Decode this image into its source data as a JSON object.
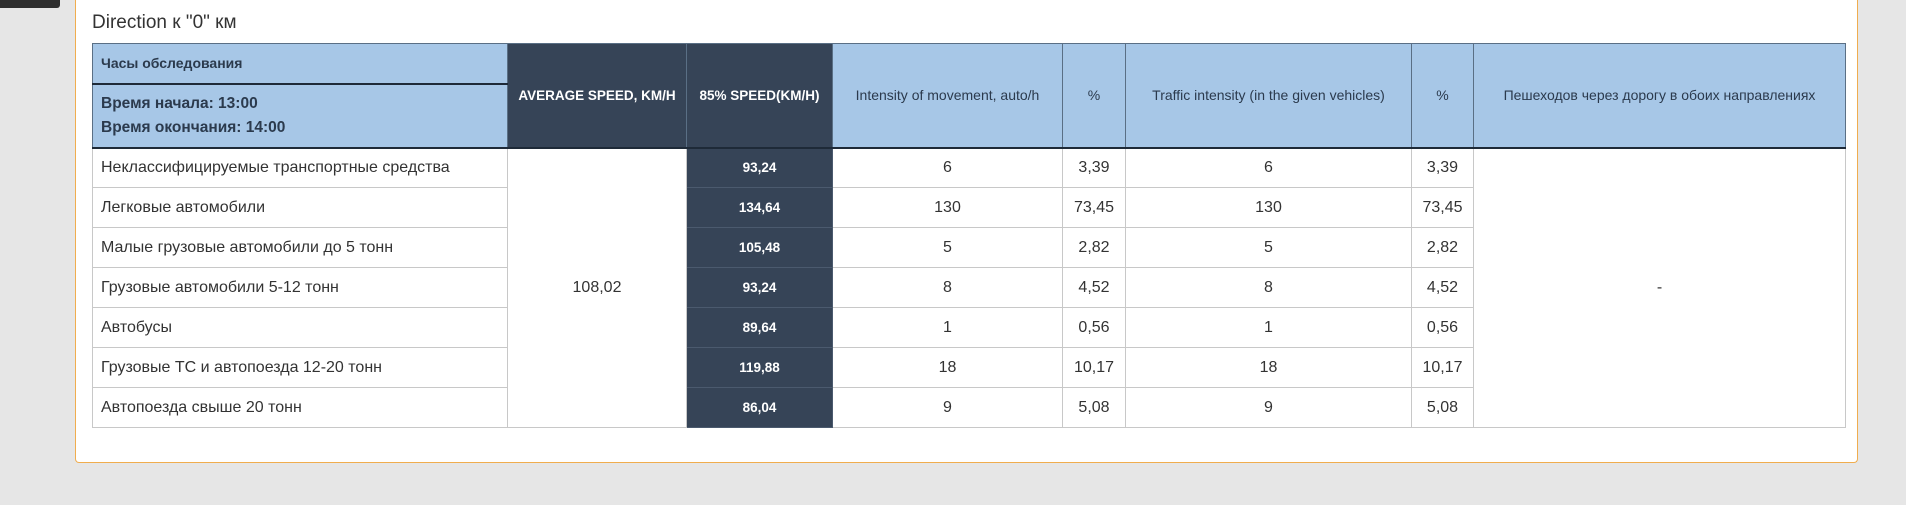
{
  "panel": {
    "title": "Direction к \"0\" км"
  },
  "table": {
    "headers": {
      "hours": "Часы обследования",
      "start_time": "Время начала: 13:00",
      "end_time": "Время окончания: 14:00",
      "avg_speed": "AVERAGE SPEED, KM/H",
      "speed85": "85% SPEED(KM/H)",
      "intensity": "Intensity of movement, auto/h",
      "pct1": "%",
      "traffic": "Traffic intensity (in the given vehicles)",
      "pct2": "%",
      "pedestrians": "Пешеходов через дорогу в обоих направлениях"
    },
    "avg_speed_value": "108,02",
    "pedestrians_value": "-",
    "rows": [
      {
        "category": "Неклассифицируемые транспортные средства",
        "speed85": "93,24",
        "intensity": "6",
        "pct1": "3,39",
        "traffic": "6",
        "pct2": "3,39"
      },
      {
        "category": "Легковые автомобили",
        "speed85": "134,64",
        "intensity": "130",
        "pct1": "73,45",
        "traffic": "130",
        "pct2": "73,45"
      },
      {
        "category": "Малые грузовые автомобили до 5 тонн",
        "speed85": "105,48",
        "intensity": "5",
        "pct1": "2,82",
        "traffic": "5",
        "pct2": "2,82"
      },
      {
        "category": "Грузовые автомобили 5-12 тонн",
        "speed85": "93,24",
        "intensity": "8",
        "pct1": "4,52",
        "traffic": "8",
        "pct2": "4,52"
      },
      {
        "category": "Автобусы",
        "speed85": "89,64",
        "intensity": "1",
        "pct1": "0,56",
        "traffic": "1",
        "pct2": "0,56"
      },
      {
        "category": "Грузовые ТС и автопоезда 12-20 тонн",
        "speed85": "119,88",
        "intensity": "18",
        "pct1": "10,17",
        "traffic": "18",
        "pct2": "10,17"
      },
      {
        "category": "Автопоезда свыше 20 тонн",
        "speed85": "86,04",
        "intensity": "9",
        "pct1": "5,08",
        "traffic": "9",
        "pct2": "5,08"
      }
    ]
  }
}
